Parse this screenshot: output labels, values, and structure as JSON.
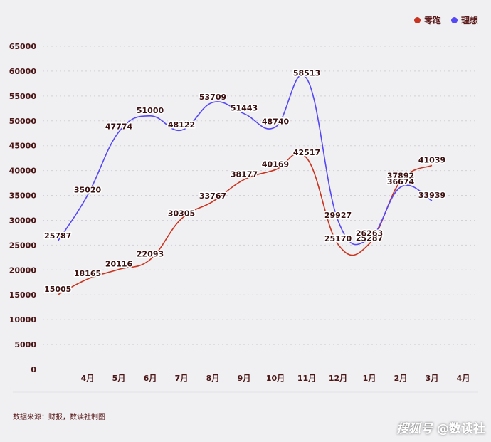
{
  "legend": {
    "series1": {
      "label": "零跑",
      "color": "#c8341f"
    },
    "series2": {
      "label": "理想",
      "color": "#5548f5"
    }
  },
  "source": "数据来源：财报，数读社制图",
  "watermark": {
    "logo": "搜狐号",
    "text": "@数读社"
  },
  "chart_data": {
    "type": "line",
    "title": "",
    "xlabel": "",
    "ylabel": "",
    "ylim": [
      0,
      65000
    ],
    "yticks": [
      0,
      5000,
      10000,
      15000,
      20000,
      25000,
      30000,
      35000,
      40000,
      45000,
      50000,
      55000,
      60000,
      65000
    ],
    "categories": [
      "4月",
      "5月",
      "6月",
      "7月",
      "8月",
      "9月",
      "10月",
      "11月",
      "12月",
      "1月",
      "2月",
      "3月",
      "4月"
    ],
    "grid": true,
    "legend_position": "top-right",
    "series": [
      {
        "name": "零跑",
        "color": "#c8341f",
        "points": [
          {
            "x": -0.95,
            "y": 15005
          },
          {
            "x": 0,
            "y": 18165
          },
          {
            "x": 1,
            "y": 20116
          },
          {
            "x": 2,
            "y": 22093
          },
          {
            "x": 3,
            "y": 30305
          },
          {
            "x": 4,
            "y": 33767
          },
          {
            "x": 5,
            "y": 38177
          },
          {
            "x": 6,
            "y": 40169
          },
          {
            "x": 7,
            "y": 42517
          },
          {
            "x": 8,
            "y": 25170
          },
          {
            "x": 9,
            "y": 25287
          },
          {
            "x": 10,
            "y": 37892
          },
          {
            "x": 11,
            "y": 41039
          }
        ],
        "labels": [
          "15005",
          "18165",
          "20116",
          "22093",
          "30305",
          "33767",
          "38177",
          "40169",
          "42517",
          "25170",
          "25287",
          "37892",
          "41039"
        ]
      },
      {
        "name": "理想",
        "color": "#5548f5",
        "points": [
          {
            "x": -0.95,
            "y": 25787
          },
          {
            "x": 0,
            "y": 35020
          },
          {
            "x": 1,
            "y": 47774
          },
          {
            "x": 2,
            "y": 51000
          },
          {
            "x": 3,
            "y": 48122
          },
          {
            "x": 4,
            "y": 53709
          },
          {
            "x": 5,
            "y": 51443
          },
          {
            "x": 6,
            "y": 48740
          },
          {
            "x": 7,
            "y": 58513
          },
          {
            "x": 8,
            "y": 29927
          },
          {
            "x": 9,
            "y": 26263
          },
          {
            "x": 10,
            "y": 36674
          },
          {
            "x": 11,
            "y": 33939
          }
        ],
        "labels": [
          "25787",
          "35020",
          "47774",
          "51000",
          "48122",
          "53709",
          "51443",
          "48740",
          "58513",
          "29927",
          "26263",
          "36674",
          "33939"
        ]
      }
    ]
  }
}
